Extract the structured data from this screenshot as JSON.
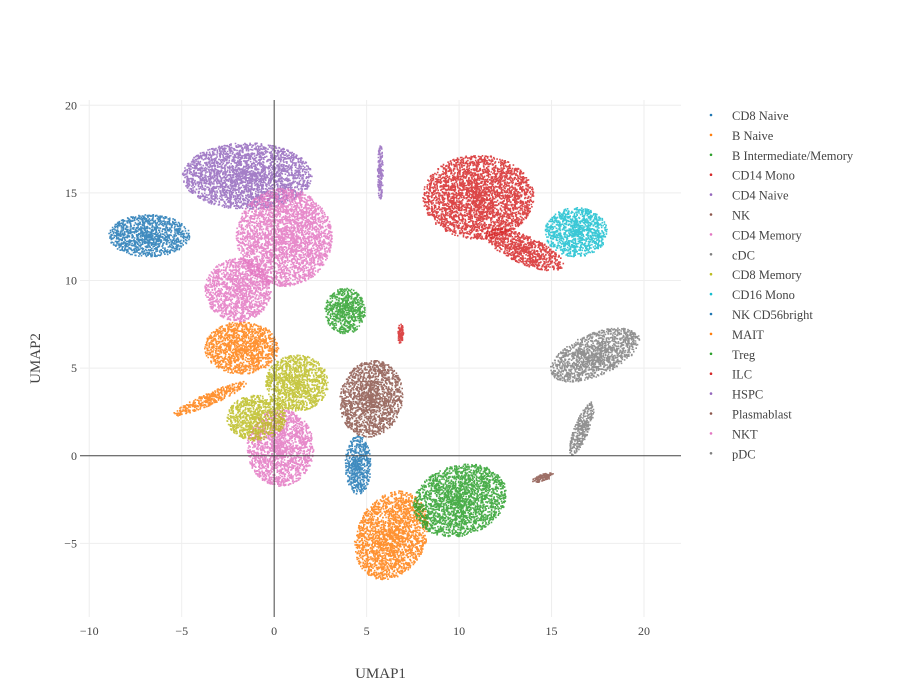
{
  "chart_data": {
    "type": "scatter",
    "title": "",
    "xlabel": "UMAP1",
    "ylabel": "UMAP2",
    "xlim": [
      -10.5,
      22
    ],
    "ylim": [
      -9.2,
      20.3
    ],
    "xticks": [
      -10,
      -5,
      0,
      5,
      10,
      15,
      20
    ],
    "xtick_labels": [
      "−10",
      "−5",
      "0",
      "5",
      "10",
      "15",
      "20"
    ],
    "yticks": [
      -5,
      0,
      5,
      10,
      15,
      20
    ],
    "ytick_labels": [
      "−5",
      "0",
      "5",
      "10",
      "15",
      "20"
    ],
    "grid": true,
    "zero_lines": true,
    "legend_position": "right",
    "series": [
      {
        "name": "CD8 Naive",
        "color": "#1f77b4",
        "clusters": [
          {
            "cx": -6.8,
            "cy": 12.6,
            "rx": 2.2,
            "ry": 1.2,
            "rot": 0
          },
          {
            "cx": 4.5,
            "cy": -0.5,
            "rx": 0.7,
            "ry": 1.7,
            "rot": 0
          }
        ]
      },
      {
        "name": "B Naive",
        "color": "#ff7f0e",
        "clusters": [
          {
            "cx": -1.8,
            "cy": 6.2,
            "rx": 2.0,
            "ry": 1.5,
            "rot": 0
          },
          {
            "cx": -3.5,
            "cy": 3.3,
            "rx": 2.2,
            "ry": 0.35,
            "rot": 25
          },
          {
            "cx": 6.3,
            "cy": -4.5,
            "rx": 1.9,
            "ry": 2.6,
            "rot": -20
          }
        ]
      },
      {
        "name": "B Intermediate/Memory",
        "color": "#2ca02c",
        "clusters": [
          {
            "cx": 3.8,
            "cy": 8.3,
            "rx": 1.1,
            "ry": 1.3,
            "rot": 0
          },
          {
            "cx": 10.0,
            "cy": -2.5,
            "rx": 2.6,
            "ry": 2.0,
            "rot": 20
          }
        ]
      },
      {
        "name": "CD14 Mono",
        "color": "#d62728",
        "clusters": [
          {
            "cx": 11.0,
            "cy": 14.8,
            "rx": 3.0,
            "ry": 2.4,
            "rot": 0
          },
          {
            "cx": 13.5,
            "cy": 11.8,
            "rx": 2.3,
            "ry": 0.8,
            "rot": -25
          },
          {
            "cx": 6.8,
            "cy": 7.0,
            "rx": 0.15,
            "ry": 0.6,
            "rot": 0
          }
        ]
      },
      {
        "name": "CD4 Naive",
        "color": "#9467bd",
        "clusters": [
          {
            "cx": -1.5,
            "cy": 16.0,
            "rx": 3.5,
            "ry": 1.9,
            "rot": 0
          },
          {
            "cx": 5.7,
            "cy": 16.2,
            "rx": 0.15,
            "ry": 1.6,
            "rot": 0
          }
        ]
      },
      {
        "name": "NK",
        "color": "#8c564b",
        "clusters": [
          {
            "cx": 5.2,
            "cy": 3.3,
            "rx": 1.7,
            "ry": 2.2,
            "rot": -10
          },
          {
            "cx": 14.5,
            "cy": -1.2,
            "rx": 0.6,
            "ry": 0.2,
            "rot": 20
          }
        ]
      },
      {
        "name": "CD4 Memory",
        "color": "#e377c2",
        "clusters": [
          {
            "cx": 0.5,
            "cy": 12.5,
            "rx": 2.6,
            "ry": 2.8,
            "rot": 0
          },
          {
            "cx": -2.0,
            "cy": 9.5,
            "rx": 1.8,
            "ry": 1.8,
            "rot": 0
          },
          {
            "cx": 0.3,
            "cy": 0.5,
            "rx": 1.8,
            "ry": 2.2,
            "rot": 0
          }
        ]
      },
      {
        "name": "cDC",
        "color": "#7f7f7f",
        "clusters": [
          {
            "cx": 17.3,
            "cy": 5.8,
            "rx": 2.6,
            "ry": 1.2,
            "rot": 25
          },
          {
            "cx": 16.6,
            "cy": 1.6,
            "rx": 0.4,
            "ry": 1.6,
            "rot": -20
          }
        ]
      },
      {
        "name": "CD8 Memory",
        "color": "#bcbd22",
        "clusters": [
          {
            "cx": 1.2,
            "cy": 4.2,
            "rx": 1.7,
            "ry": 1.6,
            "rot": 0
          },
          {
            "cx": -1.0,
            "cy": 2.2,
            "rx": 1.6,
            "ry": 1.3,
            "rot": 0
          }
        ]
      },
      {
        "name": "CD16 Mono",
        "color": "#17becf",
        "clusters": [
          {
            "cx": 16.3,
            "cy": 12.8,
            "rx": 1.7,
            "ry": 1.4,
            "rot": 0
          }
        ]
      },
      {
        "name": "NK CD56bright",
        "color": "#1f77b4",
        "clusters": []
      },
      {
        "name": "MAIT",
        "color": "#ff7f0e",
        "clusters": []
      },
      {
        "name": "Treg",
        "color": "#2ca02c",
        "clusters": []
      },
      {
        "name": "ILC",
        "color": "#d62728",
        "clusters": []
      },
      {
        "name": "HSPC",
        "color": "#9467bd",
        "clusters": []
      },
      {
        "name": "Plasmablast",
        "color": "#8c564b",
        "clusters": []
      },
      {
        "name": "NKT",
        "color": "#e377c2",
        "clusters": []
      },
      {
        "name": "pDC",
        "color": "#7f7f7f",
        "clusters": []
      }
    ]
  }
}
